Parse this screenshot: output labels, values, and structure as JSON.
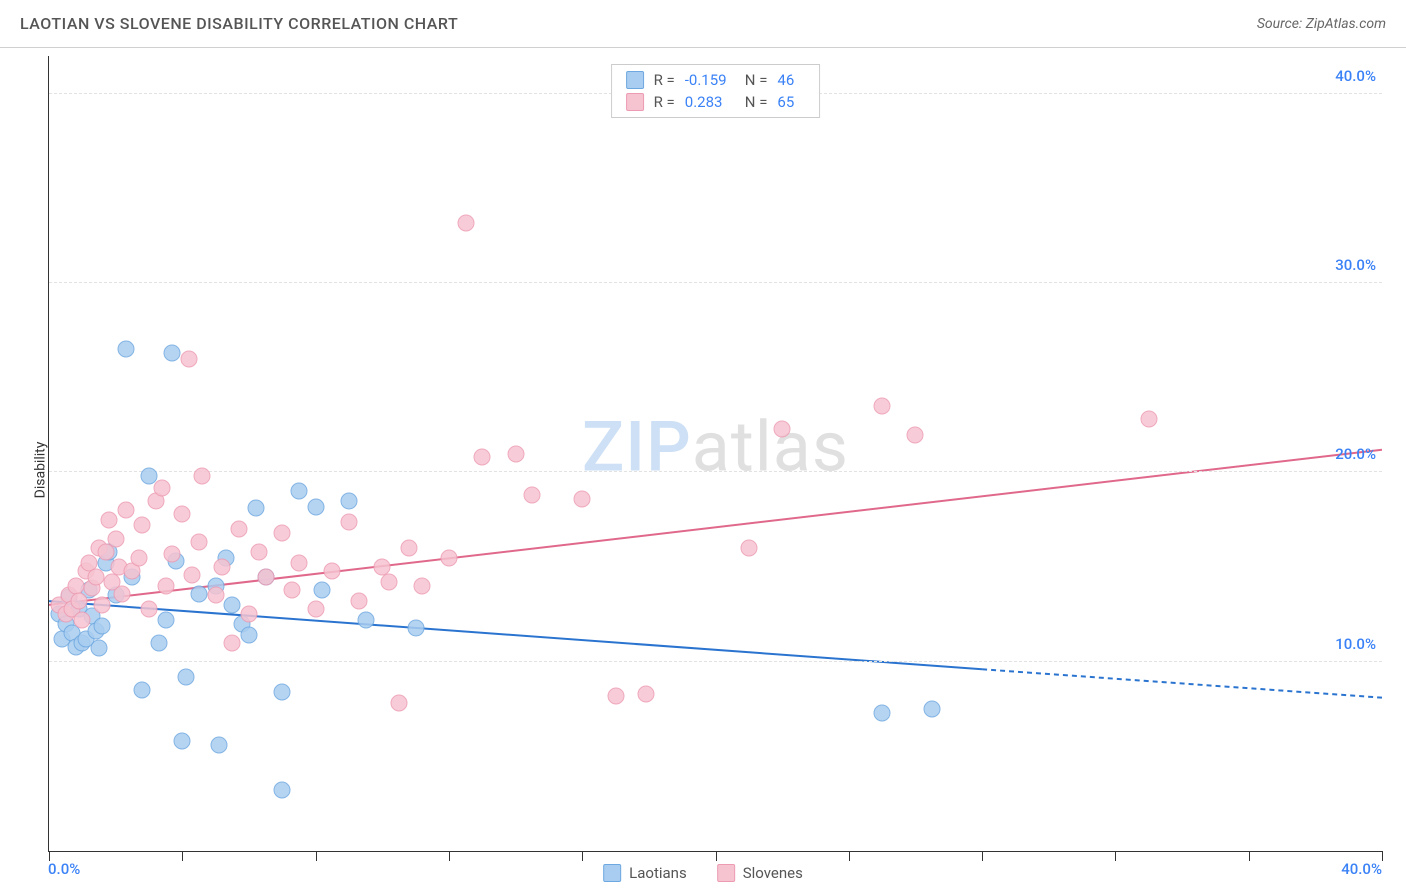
{
  "header": {
    "title": "LAOTIAN VS SLOVENE DISABILITY CORRELATION CHART",
    "source": "Source: ZipAtlas.com"
  },
  "watermark": {
    "part1": "ZIP",
    "part2": "atlas"
  },
  "chart": {
    "type": "scatter",
    "background_color": "#ffffff",
    "grid_color": "#e2e2e2",
    "axis_color": "#333333",
    "marker_radius": 8.5,
    "marker_opacity": 0.85,
    "xlim": [
      0,
      40
    ],
    "ylim": [
      0,
      42
    ],
    "xlabel": null,
    "ylabel": "Disability",
    "label_fontsize": 14,
    "xtick_positions": [
      0,
      4,
      8,
      12,
      16,
      20,
      24,
      28,
      32,
      36,
      40
    ],
    "ytick_gridlines": [
      10,
      20,
      30,
      40
    ],
    "ytick_labels": [
      {
        "pos": 10,
        "text": "10.0%"
      },
      {
        "pos": 20,
        "text": "20.0%"
      },
      {
        "pos": 30,
        "text": "30.0%"
      },
      {
        "pos": 40,
        "text": "40.0%"
      }
    ],
    "xtick_start_label": "0.0%",
    "xtick_end_label": "40.0%",
    "tick_label_color": "#3b82f6",
    "tick_label_fontsize": 15,
    "series": [
      {
        "name": "Laotians",
        "label": "Laotians",
        "fill_color": "#a9cdf0",
        "stroke_color": "#6ea8e0",
        "trend_color": "#2a74d0",
        "trend_width": 2,
        "r_label": "R =",
        "r_value": "-0.159",
        "n_label": "N =",
        "n_value": "46",
        "trend_start": {
          "x": 0,
          "y": 13.2
        },
        "trend_solid_end": {
          "x": 28,
          "y": 9.6
        },
        "trend_dash_end": {
          "x": 40,
          "y": 8.1
        },
        "points": [
          [
            0.3,
            12.5
          ],
          [
            0.4,
            11.2
          ],
          [
            0.5,
            12.0
          ],
          [
            0.6,
            13.4
          ],
          [
            0.7,
            11.5
          ],
          [
            0.8,
            10.8
          ],
          [
            0.9,
            12.8
          ],
          [
            1.0,
            11.0
          ],
          [
            1.1,
            11.2
          ],
          [
            1.2,
            13.8
          ],
          [
            1.3,
            12.4
          ],
          [
            1.4,
            11.6
          ],
          [
            1.5,
            10.7
          ],
          [
            1.6,
            11.9
          ],
          [
            1.7,
            15.2
          ],
          [
            1.8,
            15.8
          ],
          [
            2.0,
            13.5
          ],
          [
            2.3,
            26.5
          ],
          [
            2.5,
            14.5
          ],
          [
            2.8,
            8.5
          ],
          [
            3.0,
            19.8
          ],
          [
            3.3,
            11.0
          ],
          [
            3.5,
            12.2
          ],
          [
            3.7,
            26.3
          ],
          [
            3.8,
            15.3
          ],
          [
            4.0,
            5.8
          ],
          [
            4.1,
            9.2
          ],
          [
            4.5,
            13.6
          ],
          [
            5.0,
            14.0
          ],
          [
            5.1,
            5.6
          ],
          [
            5.3,
            15.5
          ],
          [
            5.5,
            13.0
          ],
          [
            5.8,
            12.0
          ],
          [
            6.0,
            11.4
          ],
          [
            6.2,
            18.1
          ],
          [
            6.5,
            14.5
          ],
          [
            7.0,
            3.2
          ],
          [
            7.0,
            8.4
          ],
          [
            7.5,
            19.0
          ],
          [
            8.0,
            18.2
          ],
          [
            8.2,
            13.8
          ],
          [
            9.0,
            18.5
          ],
          [
            9.5,
            12.2
          ],
          [
            11.0,
            11.8
          ],
          [
            25.0,
            7.3
          ],
          [
            26.5,
            7.5
          ]
        ]
      },
      {
        "name": "Slovenes",
        "label": "Slovenes",
        "fill_color": "#f6c3d1",
        "stroke_color": "#ed9bb2",
        "trend_color": "#e0688b",
        "trend_width": 2,
        "r_label": "R =",
        "r_value": "0.283",
        "n_label": "N =",
        "n_value": "65",
        "trend_start": {
          "x": 0,
          "y": 13.0
        },
        "trend_solid_end": {
          "x": 40,
          "y": 21.2
        },
        "trend_dash_end": null,
        "points": [
          [
            0.3,
            13.0
          ],
          [
            0.5,
            12.5
          ],
          [
            0.6,
            13.5
          ],
          [
            0.7,
            12.8
          ],
          [
            0.8,
            14.0
          ],
          [
            0.9,
            13.2
          ],
          [
            1.0,
            12.2
          ],
          [
            1.1,
            14.8
          ],
          [
            1.2,
            15.2
          ],
          [
            1.3,
            13.9
          ],
          [
            1.4,
            14.5
          ],
          [
            1.5,
            16.0
          ],
          [
            1.6,
            13.0
          ],
          [
            1.7,
            15.8
          ],
          [
            1.8,
            17.5
          ],
          [
            1.9,
            14.2
          ],
          [
            2.0,
            16.5
          ],
          [
            2.1,
            15.0
          ],
          [
            2.2,
            13.6
          ],
          [
            2.3,
            18.0
          ],
          [
            2.5,
            14.8
          ],
          [
            2.7,
            15.5
          ],
          [
            2.8,
            17.2
          ],
          [
            3.0,
            12.8
          ],
          [
            3.2,
            18.5
          ],
          [
            3.4,
            19.2
          ],
          [
            3.5,
            14.0
          ],
          [
            3.7,
            15.7
          ],
          [
            4.0,
            17.8
          ],
          [
            4.2,
            26.0
          ],
          [
            4.3,
            14.6
          ],
          [
            4.5,
            16.3
          ],
          [
            4.6,
            19.8
          ],
          [
            5.0,
            13.5
          ],
          [
            5.2,
            15.0
          ],
          [
            5.5,
            11.0
          ],
          [
            5.7,
            17.0
          ],
          [
            6.0,
            12.5
          ],
          [
            6.3,
            15.8
          ],
          [
            6.5,
            14.5
          ],
          [
            7.0,
            16.8
          ],
          [
            7.3,
            13.8
          ],
          [
            7.5,
            15.2
          ],
          [
            8.0,
            12.8
          ],
          [
            8.5,
            14.8
          ],
          [
            9.0,
            17.4
          ],
          [
            9.3,
            13.2
          ],
          [
            10.0,
            15.0
          ],
          [
            10.2,
            14.2
          ],
          [
            10.5,
            7.8
          ],
          [
            10.8,
            16.0
          ],
          [
            11.2,
            14.0
          ],
          [
            12.0,
            15.5
          ],
          [
            12.5,
            33.2
          ],
          [
            13.0,
            20.8
          ],
          [
            14.0,
            21.0
          ],
          [
            14.5,
            18.8
          ],
          [
            16.0,
            18.6
          ],
          [
            17.0,
            8.2
          ],
          [
            17.9,
            8.3
          ],
          [
            21.0,
            16.0
          ],
          [
            22.0,
            22.3
          ],
          [
            25.0,
            23.5
          ],
          [
            26.0,
            22.0
          ],
          [
            33.0,
            22.8
          ]
        ]
      }
    ]
  }
}
